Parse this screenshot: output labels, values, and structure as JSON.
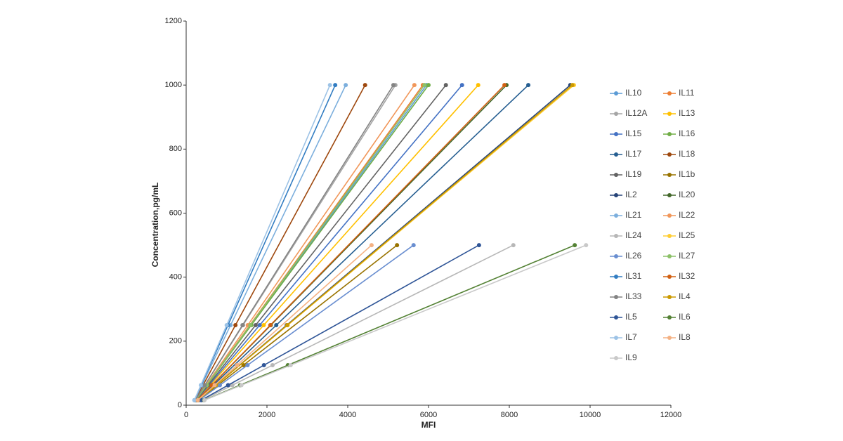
{
  "chart_data": {
    "type": "line",
    "x_label": "MFI",
    "y_label": "Concentration,pg/mL",
    "xlim": [
      0,
      12000
    ],
    "xticks": [
      0,
      2000,
      4000,
      6000,
      8000,
      10000,
      12000
    ],
    "ylim": [
      0,
      1200
    ],
    "yticks": [
      0,
      200,
      400,
      600,
      800,
      1000,
      1200
    ],
    "legend": "right",
    "series": [
      {
        "name": "IL10",
        "color": "#5b9bd5",
        "x": [
          240,
          513,
          1600,
          5950
        ],
        "values": [
          15.6,
          62.5,
          250,
          1000
        ]
      },
      {
        "name": "IL11",
        "color": "#ed7d31",
        "x": [
          239,
          507,
          1578,
          5860
        ],
        "values": [
          15.6,
          62.5,
          250,
          1000
        ]
      },
      {
        "name": "IL12A",
        "color": "#a5a5a5",
        "x": [
          228,
          464,
          1408,
          5180
        ],
        "values": [
          15.6,
          62.5,
          250,
          1000
        ]
      },
      {
        "name": "IL13",
        "color": "#ffc000",
        "x": [
          260,
          593,
          1920,
          7230
        ],
        "values": [
          15.6,
          62.5,
          250,
          1000
        ]
      },
      {
        "name": "IL15",
        "color": "#4472c4",
        "x": [
          254,
          568,
          1820,
          6830
        ],
        "values": [
          15.6,
          62.5,
          250,
          1000
        ]
      },
      {
        "name": "IL16",
        "color": "#70ad47",
        "x": [
          241,
          516,
          1613,
          6000
        ],
        "values": [
          15.6,
          62.5,
          250,
          1000
        ]
      },
      {
        "name": "IL17",
        "color": "#255e91",
        "x": [
          280,
          670,
          2230,
          8470
        ],
        "values": [
          15.6,
          62.5,
          250,
          1000
        ]
      },
      {
        "name": "IL18",
        "color": "#9e480e",
        "x": [
          217,
          418,
          1220,
          4430
        ],
        "values": [
          15.6,
          62.5,
          250,
          1000
        ]
      },
      {
        "name": "IL19",
        "color": "#636363",
        "x": [
          248,
          543,
          1720,
          6430
        ],
        "values": [
          15.6,
          62.5,
          250,
          1000
        ]
      },
      {
        "name": "IL1b",
        "color": "#997300",
        "x": [
          308,
          784,
          1418,
          5220
        ],
        "values": [
          15.6,
          62.5,
          125,
          500
        ]
      },
      {
        "name": "IL2",
        "color": "#264478",
        "x": [
          296,
          735,
          2490,
          9510
        ],
        "values": [
          15.6,
          62.5,
          250,
          1000
        ]
      },
      {
        "name": "IL20",
        "color": "#43682b",
        "x": [
          271,
          636,
          2095,
          7930
        ],
        "values": [
          15.6,
          62.5,
          250,
          1000
        ]
      },
      {
        "name": "IL21",
        "color": "#7cafdd",
        "x": [
          209,
          388,
          1100,
          3950
        ],
        "values": [
          15.6,
          62.5,
          250,
          1000
        ]
      },
      {
        "name": "IL22",
        "color": "#f1975a",
        "x": [
          236,
          494,
          1525,
          5650
        ],
        "values": [
          15.6,
          62.5,
          250,
          1000
        ]
      },
      {
        "name": "IL24",
        "color": "#b7b7b7",
        "x": [
          398,
          1144,
          2138,
          8100
        ],
        "values": [
          15.6,
          62.5,
          125,
          500
        ]
      },
      {
        "name": "IL25",
        "color": "#ffcd33",
        "x": [
          297,
          741,
          2513,
          9600
        ],
        "values": [
          15.6,
          62.5,
          250,
          1000
        ]
      },
      {
        "name": "IL26",
        "color": "#698ed0",
        "x": [
          321,
          835,
          1520,
          5630
        ],
        "values": [
          15.6,
          62.5,
          125,
          500
        ]
      },
      {
        "name": "IL27",
        "color": "#8cc168",
        "x": [
          240,
          509,
          1588,
          5900
        ],
        "values": [
          15.6,
          62.5,
          250,
          1000
        ]
      },
      {
        "name": "IL31",
        "color": "#327dc2",
        "x": [
          205,
          371,
          1035,
          3690
        ],
        "values": [
          15.6,
          62.5,
          250,
          1000
        ]
      },
      {
        "name": "IL32",
        "color": "#d26012",
        "x": [
          271,
          633,
          2083,
          7880
        ],
        "values": [
          15.6,
          62.5,
          250,
          1000
        ]
      },
      {
        "name": "IL33",
        "color": "#848484",
        "x": [
          228,
          461,
          1395,
          5130
        ],
        "values": [
          15.6,
          62.5,
          250,
          1000
        ]
      },
      {
        "name": "IL4",
        "color": "#cc9a00",
        "x": [
          297,
          738,
          2503,
          9560
        ],
        "values": [
          15.6,
          62.5,
          250,
          1000
        ]
      },
      {
        "name": "IL5",
        "color": "#2f5597",
        "x": [
          372,
          1038,
          1925,
          7250
        ],
        "values": [
          15.6,
          62.5,
          125,
          500
        ]
      },
      {
        "name": "IL6",
        "color": "#548235",
        "x": [
          445,
          1334,
          2518,
          9620
        ],
        "values": [
          15.6,
          62.5,
          125,
          500
        ]
      },
      {
        "name": "IL7",
        "color": "#9dc3e6",
        "x": [
          203,
          363,
          1003,
          3560
        ],
        "values": [
          15.6,
          62.5,
          250,
          1000
        ]
      },
      {
        "name": "IL8",
        "color": "#f4b183",
        "x": [
          289,
          705,
          1260,
          4590
        ],
        "values": [
          15.6,
          62.5,
          125,
          500
        ]
      },
      {
        "name": "IL9",
        "color": "#c9c9c9",
        "x": [
          454,
          1369,
          2588,
          9900
        ],
        "values": [
          15.6,
          62.5,
          125,
          500
        ]
      }
    ]
  }
}
